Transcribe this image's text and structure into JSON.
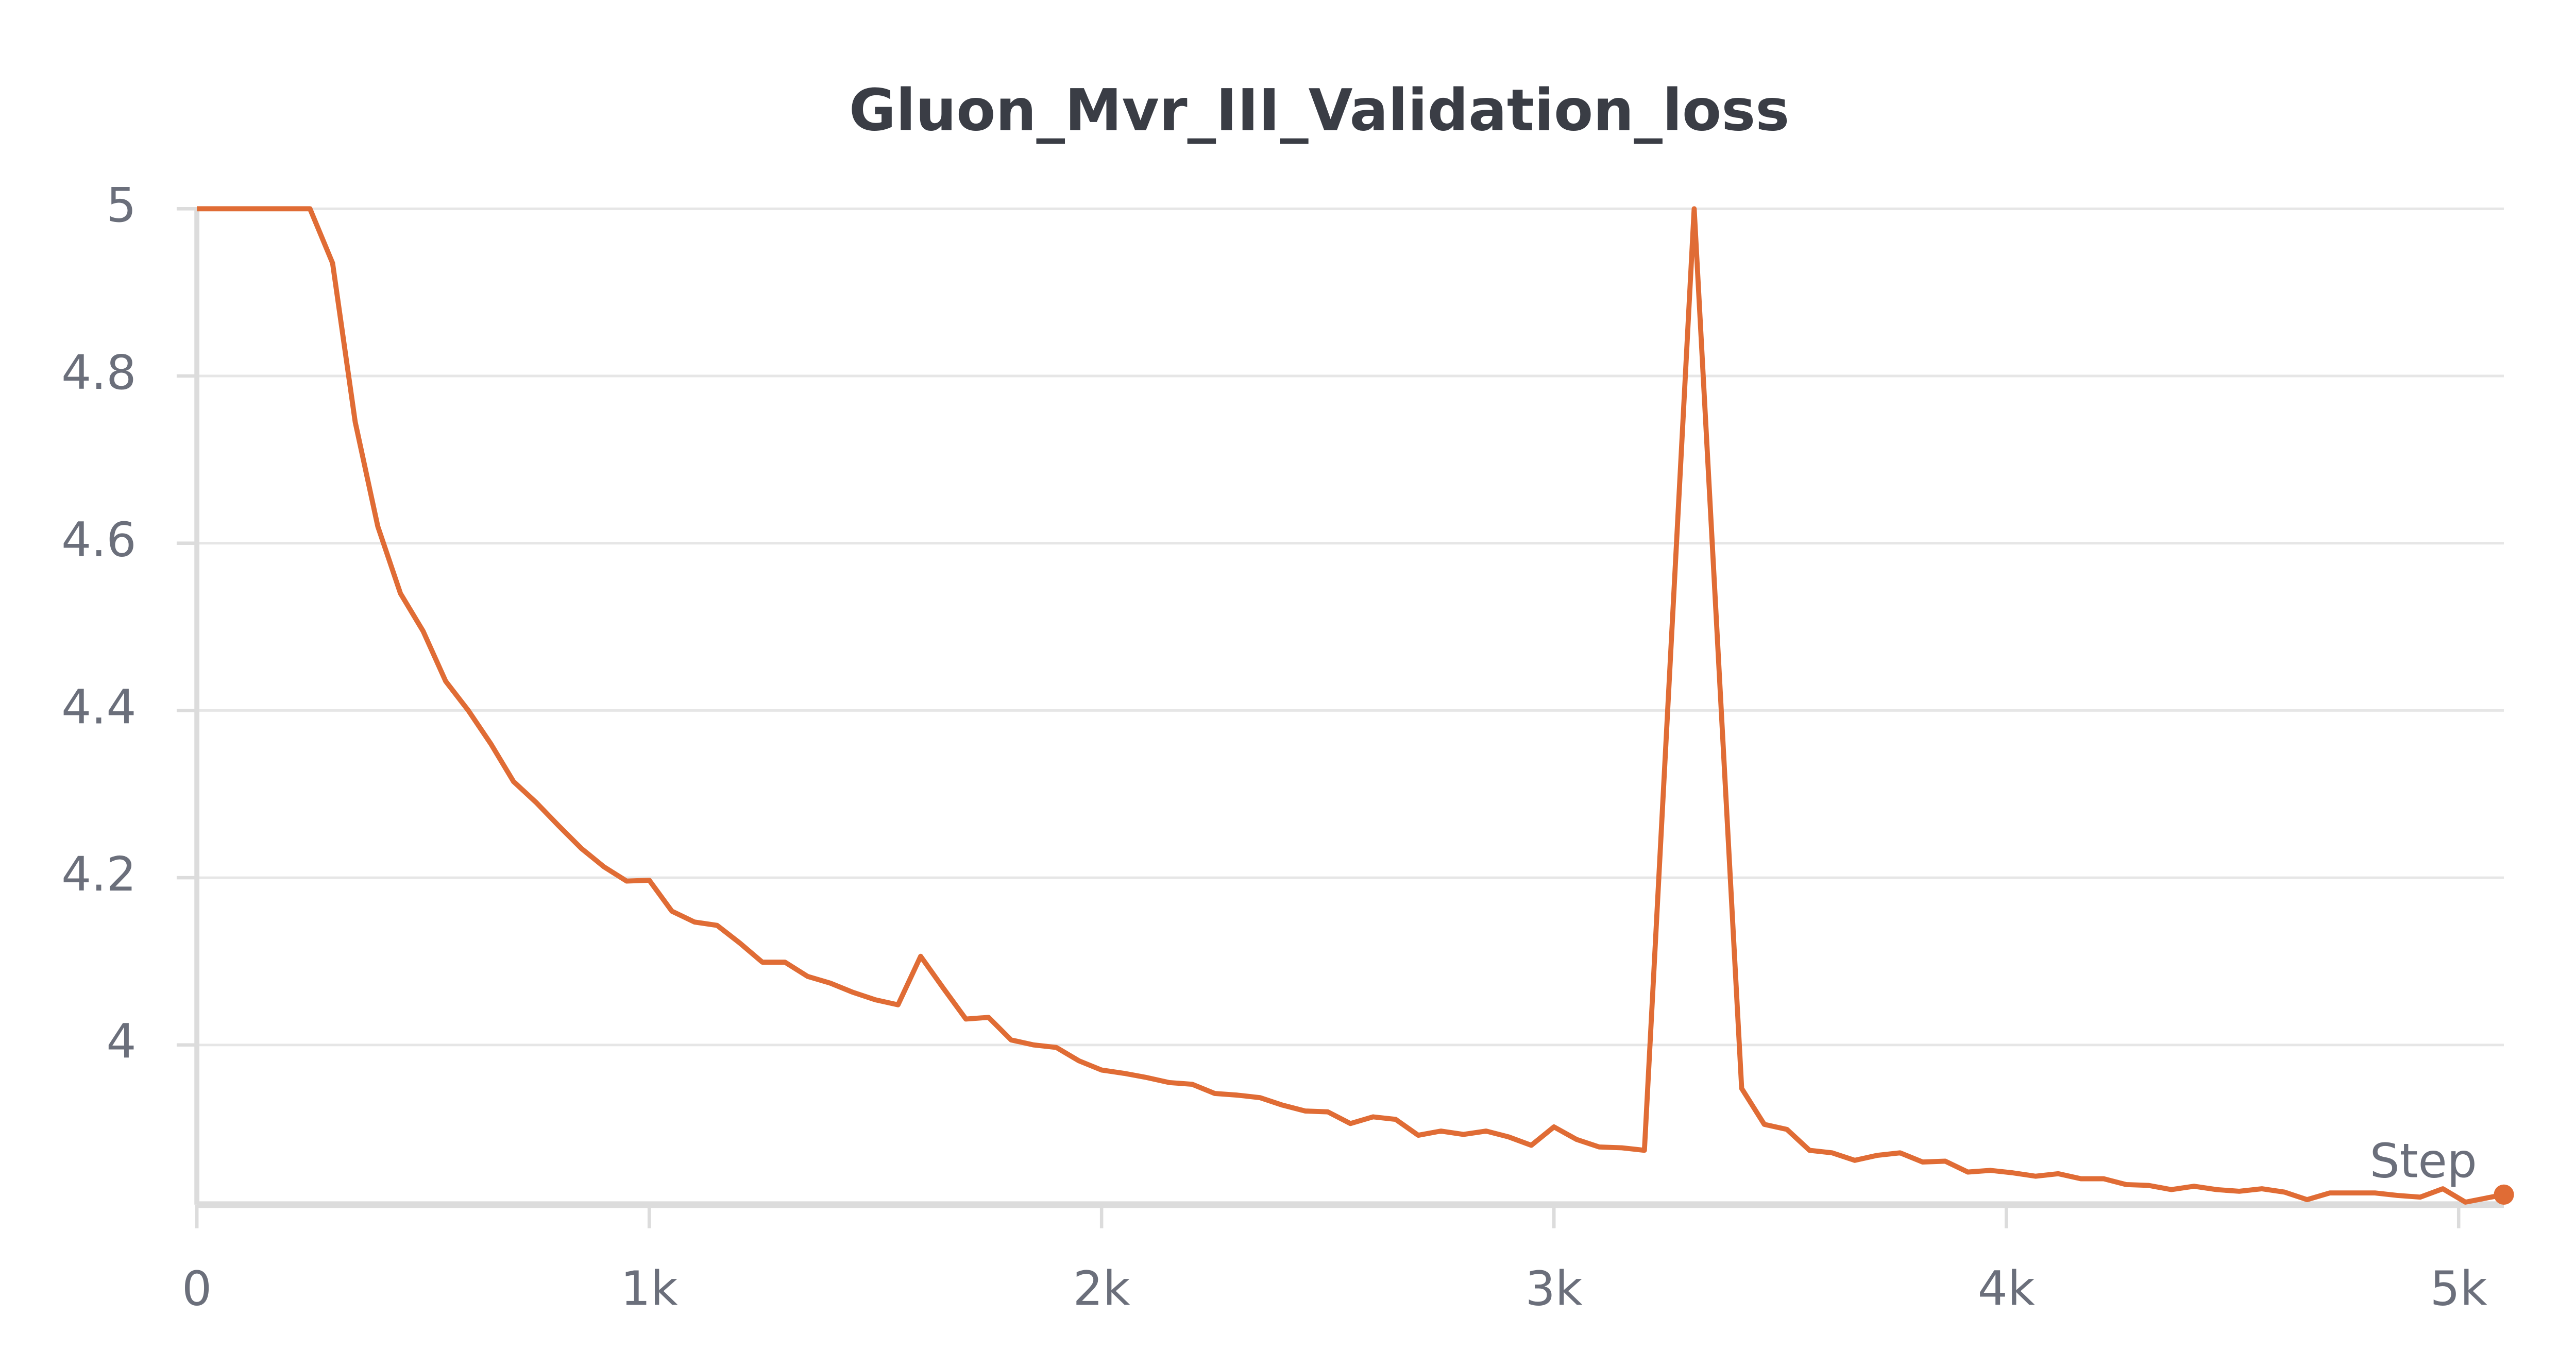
{
  "chart_data": {
    "type": "line",
    "title": "Gluon_Mvr_III_Validation_loss",
    "x_label": "Step",
    "xlim": [
      0,
      5100
    ],
    "ylim": [
      3.809,
      5
    ],
    "xticks": [
      0,
      {
        "value": 1000,
        "label": "1k"
      },
      {
        "value": 2000,
        "label": "2k"
      },
      {
        "value": 3000,
        "label": "3k"
      },
      {
        "value": 4000,
        "label": "4k"
      },
      {
        "value": 5000,
        "label": "5k"
      }
    ],
    "yticks": [
      4,
      4.2,
      4.4,
      4.6,
      4.8,
      5
    ],
    "grid": true,
    "series": [
      {
        "name": "Gluon_Mvr_III_Validation_loss",
        "color": "#e06c35",
        "x": [
          0,
          250,
          300,
          350,
          400,
          450,
          500,
          550,
          600,
          650,
          700,
          750,
          800,
          850,
          900,
          950,
          1000,
          1050,
          1100,
          1150,
          1200,
          1250,
          1300,
          1350,
          1400,
          1450,
          1500,
          1550,
          1600,
          1650,
          1700,
          1750,
          1800,
          1850,
          1900,
          1950,
          2000,
          2050,
          2100,
          2150,
          2200,
          2250,
          2300,
          2350,
          2400,
          2450,
          2500,
          2550,
          2600,
          2650,
          2700,
          2750,
          2800,
          2850,
          2900,
          2950,
          3000,
          3050,
          3100,
          3150,
          3200,
          3310,
          3415,
          3465,
          3515,
          3565,
          3615,
          3665,
          3715,
          3765,
          3815,
          3865,
          3915,
          3965,
          4015,
          4065,
          4115,
          4165,
          4215,
          4265,
          4315,
          4365,
          4415,
          4465,
          4515,
          4565,
          4615,
          4665,
          4715,
          4765,
          4815,
          4865,
          4915,
          4965,
          5015,
          5100
        ],
        "values": [
          5,
          5,
          4.935,
          4.745,
          4.62,
          4.54,
          4.495,
          4.435,
          4.4,
          4.36,
          4.315,
          4.29,
          4.262,
          4.235,
          4.213,
          4.196,
          4.197,
          4.16,
          4.147,
          4.143,
          4.122,
          4.099,
          4.099,
          4.082,
          4.074,
          4.063,
          4.054,
          4.048,
          4.106,
          4.068,
          4.031,
          4.033,
          4.006,
          4.0,
          3.997,
          3.981,
          3.97,
          3.966,
          3.961,
          3.955,
          3.953,
          3.942,
          3.94,
          3.937,
          3.928,
          3.921,
          3.92,
          3.906,
          3.914,
          3.911,
          3.892,
          3.897,
          3.893,
          3.897,
          3.89,
          3.88,
          3.902,
          3.887,
          3.878,
          3.877,
          3.874,
          5,
          3.948,
          3.905,
          3.899,
          3.874,
          3.871,
          3.862,
          3.868,
          3.871,
          3.86,
          3.861,
          3.848,
          3.85,
          3.847,
          3.843,
          3.846,
          3.84,
          3.84,
          3.833,
          3.832,
          3.827,
          3.831,
          3.827,
          3.825,
          3.828,
          3.824,
          3.815,
          3.823,
          3.823,
          3.823,
          3.82,
          3.818,
          3.828,
          3.812,
          3.821
        ]
      }
    ]
  }
}
